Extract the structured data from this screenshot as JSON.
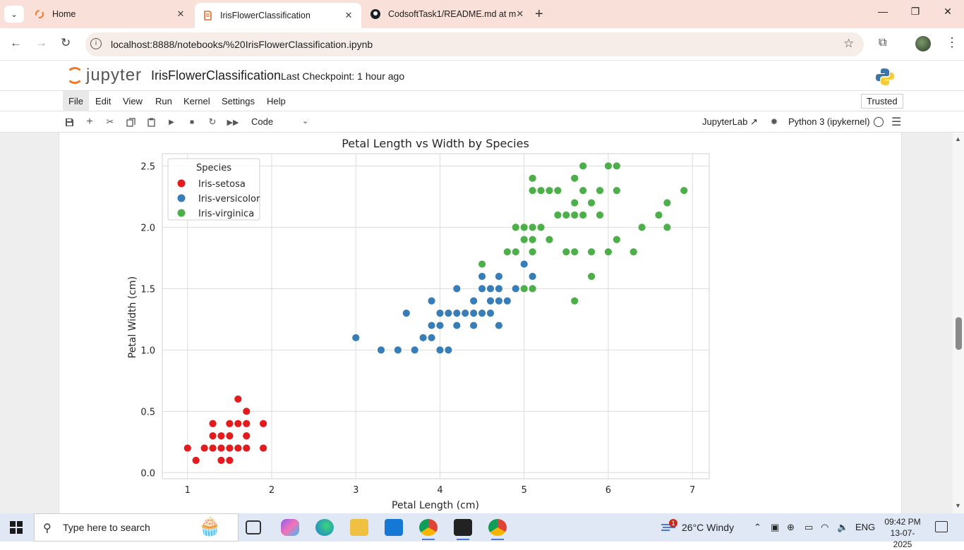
{
  "browser": {
    "tabs": [
      {
        "label": "Home",
        "icon": "jupyter-icon",
        "close": "✕"
      },
      {
        "label": "IrisFlowerClassification",
        "icon": "notebook-icon",
        "close": "✕"
      },
      {
        "label": "CodsoftTask1/README.md at m",
        "icon": "github-icon",
        "close": "✕"
      }
    ],
    "new_tab": "+",
    "url": "localhost:8888/notebooks/%20IrisFlowerClassification.ipynb"
  },
  "jupyter": {
    "logo_text": "jupyter",
    "notebook_name": "IrisFlowerClassification",
    "checkpoint": "Last Checkpoint: 1 hour ago",
    "menu": [
      "File",
      "Edit",
      "View",
      "Run",
      "Kernel",
      "Settings",
      "Help"
    ],
    "active_menu": "File",
    "trusted": "Trusted",
    "cell_type": "Code",
    "jupyterlab_label": "JupyterLab",
    "kernel": "Python 3 (ipykernel)"
  },
  "chart_data": {
    "type": "scatter",
    "title": "Petal Length vs Width by Species",
    "xlabel": "Petal Length (cm)",
    "ylabel": "Petal Width (cm)",
    "xlim": [
      0.7,
      7.2
    ],
    "ylim": [
      -0.05,
      2.6
    ],
    "xticks": [
      1,
      2,
      3,
      4,
      5,
      6,
      7
    ],
    "yticks": [
      "0.0",
      "0.5",
      "1.0",
      "1.5",
      "2.0",
      "2.5"
    ],
    "grid": true,
    "legend_title": "Species",
    "legend_position": "top-left",
    "series": [
      {
        "name": "Iris-setosa",
        "color": "#e41a1c",
        "points": [
          [
            1.0,
            0.2
          ],
          [
            1.1,
            0.1
          ],
          [
            1.2,
            0.2
          ],
          [
            1.3,
            0.2
          ],
          [
            1.3,
            0.3
          ],
          [
            1.3,
            0.4
          ],
          [
            1.4,
            0.1
          ],
          [
            1.4,
            0.2
          ],
          [
            1.4,
            0.3
          ],
          [
            1.5,
            0.1
          ],
          [
            1.5,
            0.2
          ],
          [
            1.5,
            0.3
          ],
          [
            1.5,
            0.4
          ],
          [
            1.6,
            0.2
          ],
          [
            1.6,
            0.4
          ],
          [
            1.6,
            0.6
          ],
          [
            1.7,
            0.2
          ],
          [
            1.7,
            0.3
          ],
          [
            1.7,
            0.4
          ],
          [
            1.7,
            0.5
          ],
          [
            1.9,
            0.2
          ],
          [
            1.9,
            0.4
          ]
        ]
      },
      {
        "name": "Iris-versicolor",
        "color": "#377eb8",
        "points": [
          [
            3.0,
            1.1
          ],
          [
            3.3,
            1.0
          ],
          [
            3.5,
            1.0
          ],
          [
            3.6,
            1.3
          ],
          [
            3.7,
            1.0
          ],
          [
            3.8,
            1.1
          ],
          [
            3.9,
            1.1
          ],
          [
            3.9,
            1.2
          ],
          [
            3.9,
            1.4
          ],
          [
            4.0,
            1.0
          ],
          [
            4.0,
            1.2
          ],
          [
            4.0,
            1.3
          ],
          [
            4.1,
            1.0
          ],
          [
            4.1,
            1.3
          ],
          [
            4.2,
            1.2
          ],
          [
            4.2,
            1.3
          ],
          [
            4.2,
            1.5
          ],
          [
            4.3,
            1.3
          ],
          [
            4.4,
            1.2
          ],
          [
            4.4,
            1.3
          ],
          [
            4.4,
            1.4
          ],
          [
            4.5,
            1.3
          ],
          [
            4.5,
            1.5
          ],
          [
            4.5,
            1.6
          ],
          [
            4.6,
            1.3
          ],
          [
            4.6,
            1.4
          ],
          [
            4.6,
            1.5
          ],
          [
            4.7,
            1.2
          ],
          [
            4.7,
            1.4
          ],
          [
            4.7,
            1.5
          ],
          [
            4.7,
            1.6
          ],
          [
            4.8,
            1.4
          ],
          [
            4.9,
            1.5
          ],
          [
            5.0,
            1.7
          ],
          [
            5.1,
            1.6
          ]
        ]
      },
      {
        "name": "Iris-virginica",
        "color": "#4daf4a",
        "points": [
          [
            4.5,
            1.7
          ],
          [
            4.8,
            1.8
          ],
          [
            4.9,
            1.8
          ],
          [
            4.9,
            2.0
          ],
          [
            5.0,
            1.5
          ],
          [
            5.0,
            1.9
          ],
          [
            5.0,
            2.0
          ],
          [
            5.1,
            1.5
          ],
          [
            5.1,
            1.8
          ],
          [
            5.1,
            1.9
          ],
          [
            5.1,
            2.0
          ],
          [
            5.1,
            2.3
          ],
          [
            5.1,
            2.4
          ],
          [
            5.2,
            2.0
          ],
          [
            5.2,
            2.3
          ],
          [
            5.3,
            1.9
          ],
          [
            5.3,
            2.3
          ],
          [
            5.4,
            2.1
          ],
          [
            5.4,
            2.3
          ],
          [
            5.5,
            1.8
          ],
          [
            5.5,
            2.1
          ],
          [
            5.6,
            1.4
          ],
          [
            5.6,
            1.8
          ],
          [
            5.6,
            2.1
          ],
          [
            5.6,
            2.2
          ],
          [
            5.6,
            2.4
          ],
          [
            5.7,
            2.1
          ],
          [
            5.7,
            2.3
          ],
          [
            5.7,
            2.5
          ],
          [
            5.8,
            1.6
          ],
          [
            5.8,
            1.8
          ],
          [
            5.8,
            2.2
          ],
          [
            5.9,
            2.1
          ],
          [
            5.9,
            2.3
          ],
          [
            6.0,
            1.8
          ],
          [
            6.0,
            2.5
          ],
          [
            6.1,
            1.9
          ],
          [
            6.1,
            2.3
          ],
          [
            6.1,
            2.5
          ],
          [
            6.3,
            1.8
          ],
          [
            6.4,
            2.0
          ],
          [
            6.6,
            2.1
          ],
          [
            6.7,
            2.0
          ],
          [
            6.7,
            2.2
          ],
          [
            6.9,
            2.3
          ]
        ]
      }
    ]
  },
  "taskbar": {
    "search_placeholder": "Type here to search",
    "weather": "26°C  Windy",
    "weather_badge": "1",
    "language": "ENG",
    "time": "09:42 PM",
    "date": "13-07-2025"
  }
}
